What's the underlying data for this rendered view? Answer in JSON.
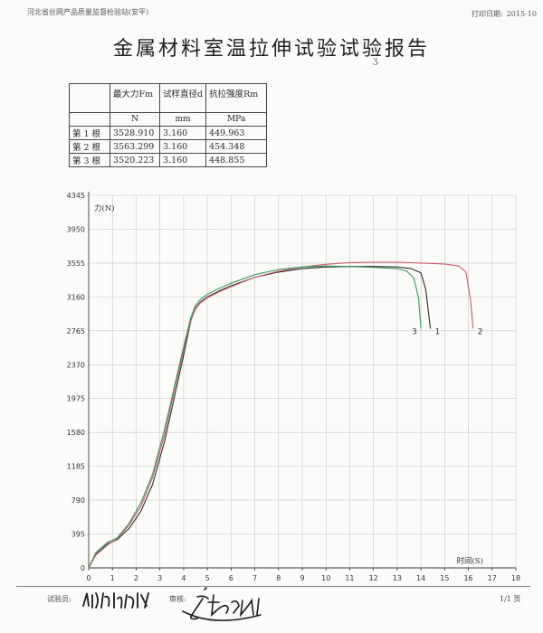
{
  "header": {
    "org": "河北省丝网产品质量监督检验站(安平)",
    "print_label": "打印日期:",
    "print_date": "2015-10"
  },
  "report_title": "金属材料室温拉伸试验试验报告",
  "results_table": {
    "headers": [
      "",
      "最大力Fm",
      "试样直径d",
      "抗拉强度Rm"
    ],
    "units": [
      "",
      "N",
      "mm",
      "MPa"
    ],
    "rows": [
      {
        "label": "第 1 根",
        "fm": "3528.910",
        "d": "3.160",
        "rm": "449.963"
      },
      {
        "label": "第 2 根",
        "fm": "3563.299",
        "d": "3.160",
        "rm": "454.348"
      },
      {
        "label": "第 3 根",
        "fm": "3520.223",
        "d": "3.160",
        "rm": "448.855"
      }
    ]
  },
  "chart_data": {
    "type": "line",
    "title": "",
    "xlabel": "时间(S)",
    "ylabel": "力(N)",
    "xlim": [
      0,
      18
    ],
    "ylim": [
      0,
      4345
    ],
    "xticks": [
      "0",
      "1",
      "2",
      "3",
      "4",
      "5",
      "6",
      "7",
      "8",
      "9",
      "10",
      "11",
      "12",
      "13",
      "14",
      "15",
      "16",
      "17",
      "18"
    ],
    "yticks": [
      "0",
      "395",
      "790",
      "1185",
      "1580",
      "1975",
      "2370",
      "2765",
      "3160",
      "3555",
      "3950",
      "4345"
    ],
    "grid": true,
    "series": [
      {
        "name": "1",
        "color": "#2b2b2b",
        "x": [
          0,
          0.3,
          0.8,
          1.2,
          1.7,
          2.2,
          2.7,
          3.2,
          3.6,
          4.0,
          4.3,
          4.5,
          4.7,
          5.0,
          5.5,
          6,
          7,
          8,
          9,
          10,
          11,
          12,
          13,
          13.6,
          14.0,
          14.2,
          14.4
        ],
        "y": [
          0,
          160,
          280,
          330,
          460,
          660,
          980,
          1480,
          1980,
          2480,
          2880,
          3030,
          3100,
          3160,
          3230,
          3290,
          3390,
          3450,
          3490,
          3510,
          3515,
          3515,
          3510,
          3490,
          3440,
          3250,
          2790
        ]
      },
      {
        "name": "2",
        "color": "#cc5a6a",
        "x": [
          0,
          0.3,
          0.8,
          1.2,
          1.7,
          2.2,
          2.7,
          3.2,
          3.6,
          4.0,
          4.3,
          4.5,
          4.7,
          5.0,
          5.5,
          6,
          7,
          8,
          9,
          10,
          11,
          12,
          13,
          14,
          15,
          15.6,
          15.9,
          16.1,
          16.2
        ],
        "y": [
          0,
          150,
          270,
          340,
          500,
          720,
          1060,
          1560,
          2060,
          2540,
          2890,
          3020,
          3090,
          3150,
          3220,
          3280,
          3390,
          3460,
          3510,
          3540,
          3560,
          3565,
          3565,
          3555,
          3545,
          3520,
          3450,
          3100,
          2790
        ]
      },
      {
        "name": "3",
        "color": "#3a9a5a",
        "x": [
          0,
          0.3,
          0.8,
          1.2,
          1.7,
          2.2,
          2.7,
          3.2,
          3.6,
          4.0,
          4.3,
          4.5,
          4.7,
          5.0,
          5.5,
          6,
          7,
          8,
          9,
          10,
          11,
          12,
          13,
          13.4,
          13.7,
          13.9,
          14.0
        ],
        "y": [
          0,
          180,
          300,
          350,
          520,
          760,
          1100,
          1620,
          2100,
          2580,
          2920,
          3060,
          3130,
          3190,
          3260,
          3320,
          3420,
          3480,
          3510,
          3520,
          3515,
          3505,
          3490,
          3460,
          3380,
          3150,
          2790
        ]
      }
    ]
  },
  "footer": {
    "tester_label": "试验员:",
    "reviewer_label": "审核:",
    "page": "1/1 页"
  }
}
